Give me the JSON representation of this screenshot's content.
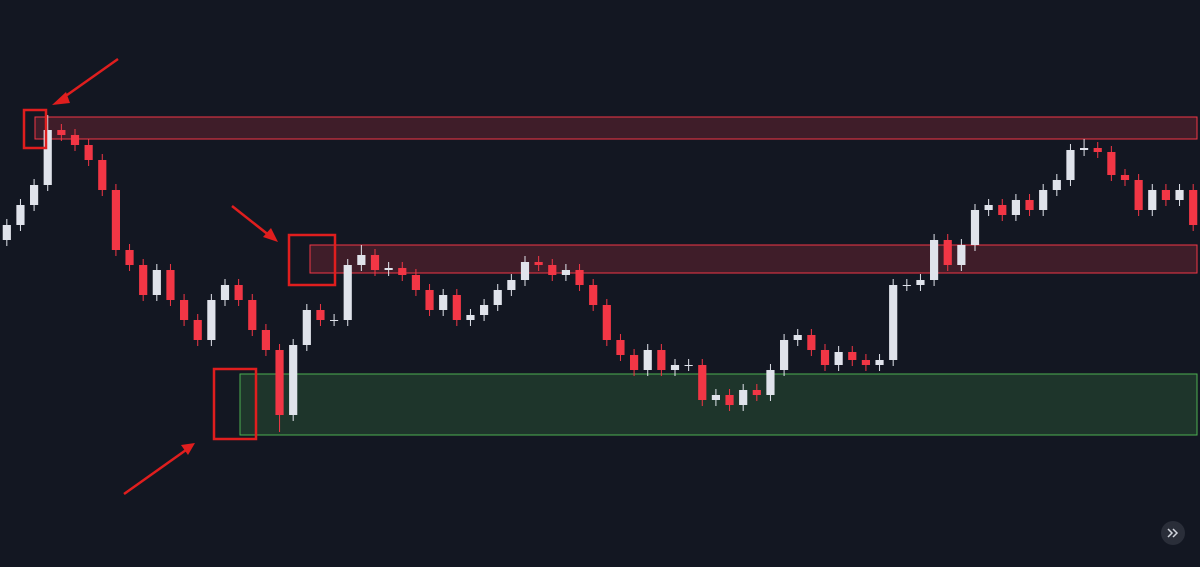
{
  "chart_data": {
    "type": "candlestick",
    "up_color": "#e0e3eb",
    "down_color": "#f23645",
    "ylim": [
      0,
      567
    ],
    "ohlc": [
      [
        327,
        348,
        321,
        342
      ],
      [
        342,
        368,
        336,
        362
      ],
      [
        362,
        388,
        356,
        382
      ],
      [
        382,
        452,
        376,
        437
      ],
      [
        437,
        443,
        426,
        432
      ],
      [
        432,
        438,
        416,
        422
      ],
      [
        422,
        428,
        401,
        407
      ],
      [
        407,
        413,
        371,
        377
      ],
      [
        377,
        383,
        311,
        317
      ],
      [
        317,
        323,
        296,
        302
      ],
      [
        302,
        308,
        266,
        272
      ],
      [
        272,
        303,
        266,
        297
      ],
      [
        297,
        303,
        261,
        267
      ],
      [
        267,
        273,
        241,
        247
      ],
      [
        247,
        253,
        221,
        227
      ],
      [
        227,
        273,
        221,
        267
      ],
      [
        267,
        288,
        261,
        282
      ],
      [
        282,
        288,
        261,
        267
      ],
      [
        267,
        273,
        231,
        237
      ],
      [
        237,
        243,
        211,
        217
      ],
      [
        217,
        223,
        135,
        152
      ],
      [
        152,
        228,
        146,
        222
      ],
      [
        222,
        263,
        216,
        257
      ],
      [
        257,
        263,
        241,
        247
      ],
      [
        247,
        253,
        241,
        247
      ],
      [
        247,
        308,
        241,
        302
      ],
      [
        302,
        322,
        296,
        312
      ],
      [
        312,
        318,
        291,
        297
      ],
      [
        297,
        305,
        291,
        299
      ],
      [
        299,
        305,
        286,
        292
      ],
      [
        292,
        298,
        271,
        277
      ],
      [
        277,
        283,
        251,
        257
      ],
      [
        257,
        278,
        251,
        272
      ],
      [
        272,
        278,
        241,
        247
      ],
      [
        247,
        258,
        241,
        252
      ],
      [
        252,
        268,
        246,
        262
      ],
      [
        262,
        283,
        256,
        277
      ],
      [
        277,
        293,
        271,
        287
      ],
      [
        287,
        311,
        281,
        305
      ],
      [
        305,
        311,
        296,
        302
      ],
      [
        302,
        308,
        286,
        292
      ],
      [
        292,
        303,
        286,
        297
      ],
      [
        297,
        303,
        276,
        282
      ],
      [
        282,
        288,
        256,
        262
      ],
      [
        262,
        268,
        221,
        227
      ],
      [
        227,
        233,
        206,
        212
      ],
      [
        212,
        218,
        191,
        197
      ],
      [
        197,
        223,
        191,
        217
      ],
      [
        217,
        223,
        191,
        197
      ],
      [
        197,
        208,
        191,
        202
      ],
      [
        202,
        208,
        196,
        202
      ],
      [
        202,
        208,
        161,
        167
      ],
      [
        167,
        178,
        161,
        172
      ],
      [
        172,
        178,
        156,
        162
      ],
      [
        162,
        183,
        156,
        177
      ],
      [
        177,
        183,
        166,
        172
      ],
      [
        172,
        203,
        166,
        197
      ],
      [
        197,
        233,
        191,
        227
      ],
      [
        227,
        238,
        221,
        232
      ],
      [
        232,
        238,
        211,
        217
      ],
      [
        217,
        223,
        196,
        202
      ],
      [
        202,
        221,
        196,
        215
      ],
      [
        215,
        221,
        201,
        207
      ],
      [
        207,
        213,
        196,
        202
      ],
      [
        202,
        213,
        196,
        207
      ],
      [
        207,
        288,
        201,
        282
      ],
      [
        282,
        288,
        276,
        282
      ],
      [
        282,
        293,
        276,
        287
      ],
      [
        287,
        333,
        281,
        327
      ],
      [
        327,
        333,
        296,
        302
      ],
      [
        302,
        328,
        296,
        322
      ],
      [
        322,
        363,
        316,
        357
      ],
      [
        357,
        368,
        351,
        362
      ],
      [
        362,
        368,
        346,
        352
      ],
      [
        352,
        373,
        346,
        367
      ],
      [
        367,
        373,
        351,
        357
      ],
      [
        357,
        383,
        351,
        377
      ],
      [
        377,
        393,
        371,
        387
      ],
      [
        387,
        423,
        381,
        417
      ],
      [
        417,
        428,
        411,
        419
      ],
      [
        419,
        425,
        409,
        415
      ],
      [
        415,
        421,
        386,
        392
      ],
      [
        392,
        398,
        381,
        387
      ],
      [
        387,
        393,
        351,
        357
      ],
      [
        357,
        383,
        351,
        377
      ],
      [
        377,
        383,
        361,
        367
      ],
      [
        367,
        383,
        361,
        377
      ],
      [
        377,
        383,
        336,
        342
      ]
    ],
    "zones": [
      {
        "low": 428,
        "high": 450,
        "color": "#f23645"
      },
      {
        "low": 294,
        "high": 322,
        "color": "#f23645"
      },
      {
        "low": 132,
        "high": 193,
        "color": "#4caf50"
      }
    ]
  }
}
